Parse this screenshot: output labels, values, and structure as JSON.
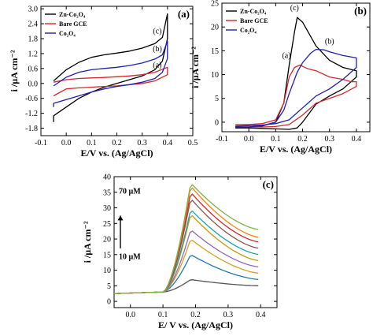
{
  "chart_data": [
    {
      "panel": "(a)",
      "type": "line",
      "xlabel": "E/V vs. (Ag/AgCl)",
      "ylabel": "i /µA cm⁻²",
      "xlim": [
        -0.1,
        0.5
      ],
      "ylim": [
        -2.1,
        3.1
      ],
      "xticks": [
        "-0.1",
        "0.0",
        "0.1",
        "0.2",
        "0.3",
        "0.4",
        "0.5"
      ],
      "xtick_values": [
        -0.1,
        0.0,
        0.1,
        0.2,
        0.3,
        0.4,
        0.5
      ],
      "yticks": [
        "-1.8",
        "-1.2",
        "-0.6",
        "0.0",
        "0.6",
        "1.2",
        "1.8",
        "2.4",
        "3.0"
      ],
      "ytick_values": [
        -1.8,
        -1.2,
        -0.6,
        0.0,
        0.6,
        1.2,
        1.8,
        2.4,
        3.0
      ],
      "legend_position": "top-left",
      "series": [
        {
          "name": "Zn-Co₂O₄",
          "label": "(c)",
          "color": "#000000",
          "x": [
            -0.05,
            0.0,
            0.05,
            0.1,
            0.15,
            0.2,
            0.25,
            0.3,
            0.35,
            0.38,
            0.4,
            0.4,
            0.38,
            0.35,
            0.3,
            0.25,
            0.2,
            0.15,
            0.1,
            0.05,
            0.0,
            -0.05,
            -0.05
          ],
          "y": [
            0.1,
            0.55,
            0.85,
            1.05,
            1.15,
            1.22,
            1.3,
            1.42,
            1.6,
            1.85,
            2.8,
            1.8,
            0.9,
            0.55,
            0.3,
            0.15,
            0.0,
            -0.15,
            -0.35,
            -0.6,
            -0.95,
            -1.3,
            -1.55
          ]
        },
        {
          "name": "Bare GCE",
          "label": "(a)",
          "color": "#d62728",
          "x": [
            -0.05,
            0.0,
            0.05,
            0.1,
            0.15,
            0.2,
            0.25,
            0.3,
            0.35,
            0.4,
            0.4,
            0.35,
            0.3,
            0.25,
            0.2,
            0.15,
            0.1,
            0.05,
            0.0,
            -0.05
          ],
          "y": [
            0.05,
            0.15,
            0.2,
            0.22,
            0.24,
            0.27,
            0.3,
            0.35,
            0.45,
            0.65,
            0.35,
            0.1,
            0.0,
            -0.05,
            -0.1,
            -0.12,
            -0.15,
            -0.18,
            -0.22,
            -0.5
          ]
        },
        {
          "name": "Co₂O₄",
          "label": "(b)",
          "color": "#1f1fb4",
          "x": [
            -0.05,
            0.0,
            0.05,
            0.1,
            0.15,
            0.2,
            0.25,
            0.3,
            0.35,
            0.38,
            0.4,
            0.4,
            0.38,
            0.35,
            0.3,
            0.25,
            0.2,
            0.15,
            0.1,
            0.05,
            0.0,
            -0.05,
            -0.05
          ],
          "y": [
            -0.1,
            0.25,
            0.45,
            0.55,
            0.6,
            0.65,
            0.72,
            0.82,
            0.98,
            1.15,
            1.7,
            1.0,
            0.45,
            0.2,
            0.05,
            -0.05,
            -0.12,
            -0.22,
            -0.35,
            -0.5,
            -0.65,
            -0.8,
            -0.95
          ]
        }
      ]
    },
    {
      "panel": "(b)",
      "type": "line",
      "xlabel": "E/V vs. (Ag/AgCl)",
      "ylabel": "i /µA cm⁻²",
      "xlim": [
        -0.1,
        0.45
      ],
      "ylim": [
        -2,
        25
      ],
      "xticks": [
        "-0.1",
        "0.0",
        "0.1",
        "0.2",
        "0.3",
        "0.4"
      ],
      "xtick_values": [
        -0.1,
        0.0,
        0.1,
        0.2,
        0.3,
        0.4
      ],
      "yticks": [
        "0",
        "5",
        "10",
        "15",
        "20",
        "25"
      ],
      "ytick_values": [
        0,
        5,
        10,
        15,
        20,
        25
      ],
      "legend_position": "top-left",
      "series": [
        {
          "name": "Zn-Co₂O₄",
          "label": "(c)",
          "color": "#000000",
          "x": [
            -0.05,
            0.0,
            0.05,
            0.1,
            0.13,
            0.15,
            0.17,
            0.18,
            0.2,
            0.25,
            0.3,
            0.35,
            0.4,
            0.4,
            0.35,
            0.3,
            0.25,
            0.2,
            0.18,
            0.15,
            0.1,
            0.05,
            0.0,
            -0.05
          ],
          "y": [
            -1.0,
            -1.0,
            -0.8,
            0.0,
            4.0,
            12.0,
            19.0,
            22.0,
            21.0,
            16.0,
            13.0,
            11.5,
            10.8,
            9.5,
            7.0,
            5.5,
            3.8,
            0.0,
            -1.2,
            -1.5,
            -1.4,
            -1.3,
            -1.2,
            -1.2
          ]
        },
        {
          "name": "Bare GCE",
          "label": "(a)",
          "color": "#d62728",
          "x": [
            -0.05,
            0.0,
            0.05,
            0.1,
            0.13,
            0.15,
            0.17,
            0.19,
            0.22,
            0.25,
            0.3,
            0.35,
            0.38,
            0.4,
            0.4,
            0.35,
            0.3,
            0.25,
            0.2,
            0.15,
            0.1,
            0.05,
            0.0,
            -0.05
          ],
          "y": [
            -0.5,
            -0.5,
            -0.3,
            0.5,
            4.0,
            9.5,
            11.5,
            12.0,
            11.2,
            10.8,
            9.5,
            9.0,
            8.5,
            8.5,
            7.5,
            6.0,
            5.0,
            4.0,
            1.5,
            -0.5,
            -0.9,
            -1.0,
            -1.0,
            -1.0
          ]
        },
        {
          "name": "Co₂O₄",
          "label": "(b)",
          "color": "#1f1fb4",
          "x": [
            -0.05,
            0.0,
            0.05,
            0.1,
            0.13,
            0.15,
            0.18,
            0.2,
            0.23,
            0.25,
            0.28,
            0.3,
            0.35,
            0.4,
            0.4,
            0.35,
            0.3,
            0.25,
            0.2,
            0.15,
            0.1,
            0.05,
            0.0,
            -0.05
          ],
          "y": [
            -1.0,
            -1.0,
            -0.7,
            0.0,
            2.5,
            6.0,
            10.5,
            12.5,
            14.5,
            15.3,
            15.2,
            14.8,
            14.0,
            13.5,
            11.5,
            9.0,
            7.0,
            5.5,
            3.0,
            0.5,
            -0.3,
            -0.6,
            -0.7,
            -0.8
          ]
        }
      ]
    },
    {
      "panel": "(c)",
      "type": "line",
      "xlabel": "E/ V vs. (Ag/AgCl)",
      "ylabel": "i /µA cm⁻²",
      "xlim": [
        -0.05,
        0.45
      ],
      "ylim": [
        -2,
        40
      ],
      "xticks": [
        "0.0",
        "0.1",
        "0.2",
        "0.3",
        "0.4"
      ],
      "xtick_values": [
        0.0,
        0.1,
        0.2,
        0.3,
        0.4
      ],
      "yticks": [
        "0",
        "5",
        "10",
        "15",
        "20",
        "25",
        "30",
        "35",
        "40"
      ],
      "ytick_values": [
        0,
        5,
        10,
        15,
        20,
        25,
        30,
        35,
        40
      ],
      "annotation_top": "70 µM",
      "annotation_bottom": "10 µM",
      "concentration_series": [
        {
          "color": "#555555",
          "peak": 7,
          "tail": 5
        },
        {
          "color": "#1f77b4",
          "peak": 15,
          "tail": 7
        },
        {
          "color": "#d6a21c",
          "peak": 20,
          "tail": 9
        },
        {
          "color": "#9467bd",
          "peak": 23,
          "tail": 11
        },
        {
          "color": "#c49a00",
          "peak": 28,
          "tail": 13
        },
        {
          "color": "#17a2b8",
          "peak": 29.5,
          "tail": 15
        },
        {
          "color": "#8c564b",
          "peak": 33,
          "tail": 17
        },
        {
          "color": "#d62728",
          "peak": 35,
          "tail": 19
        },
        {
          "color": "#ff7f0e",
          "peak": 37,
          "tail": 20.5
        },
        {
          "color": "#7cb342",
          "peak": 38,
          "tail": 23
        }
      ]
    }
  ]
}
